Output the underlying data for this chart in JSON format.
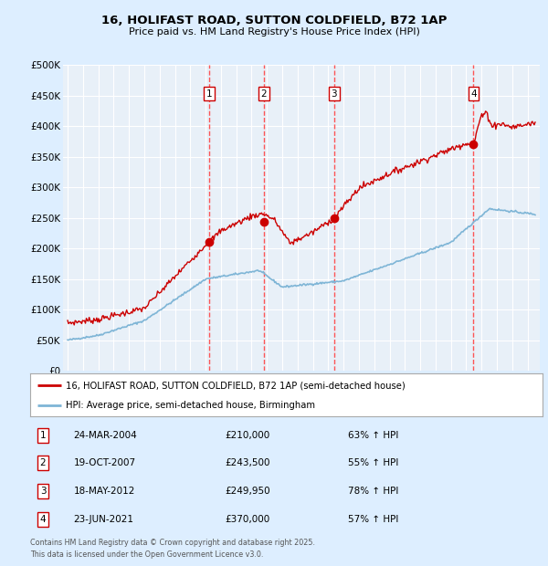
{
  "title": "16, HOLIFAST ROAD, SUTTON COLDFIELD, B72 1AP",
  "subtitle": "Price paid vs. HM Land Registry's House Price Index (HPI)",
  "legend_line1": "16, HOLIFAST ROAD, SUTTON COLDFIELD, B72 1AP (semi-detached house)",
  "legend_line2": "HPI: Average price, semi-detached house, Birmingham",
  "footer_line1": "Contains HM Land Registry data © Crown copyright and database right 2025.",
  "footer_line2": "This data is licensed under the Open Government Licence v3.0.",
  "transactions": [
    {
      "num": 1,
      "date": "24-MAR-2004",
      "year": 2004.23,
      "price": 210000,
      "label": "63% ↑ HPI"
    },
    {
      "num": 2,
      "date": "19-OCT-2007",
      "year": 2007.8,
      "price": 243500,
      "label": "55% ↑ HPI"
    },
    {
      "num": 3,
      "date": "18-MAY-2012",
      "year": 2012.38,
      "price": 249950,
      "label": "78% ↑ HPI"
    },
    {
      "num": 4,
      "date": "23-JUN-2021",
      "year": 2021.48,
      "price": 370000,
      "label": "57% ↑ HPI"
    }
  ],
  "red_line_color": "#cc0000",
  "blue_line_color": "#7eb5d6",
  "background_color": "#ddeeff",
  "plot_bg_color": "#e8f0f8",
  "grid_color": "#ffffff",
  "vline_color": "#ff4444",
  "marker_color": "#cc0000",
  "ylim": [
    0,
    500000
  ],
  "yticks": [
    0,
    50000,
    100000,
    150000,
    200000,
    250000,
    300000,
    350000,
    400000,
    450000,
    500000
  ],
  "xlim_start": 1994.7,
  "xlim_end": 2025.8
}
